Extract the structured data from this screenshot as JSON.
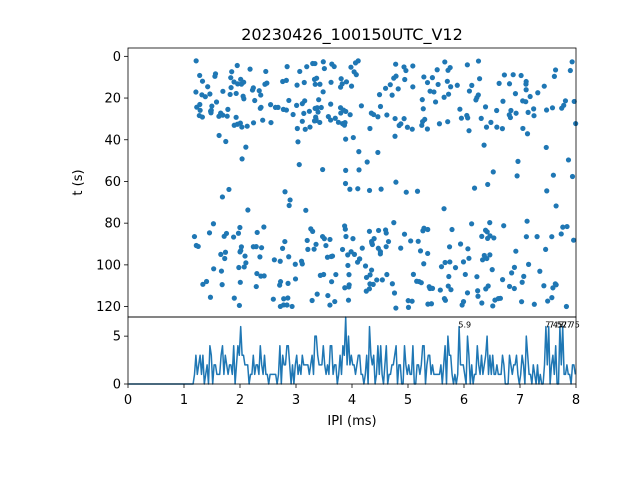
{
  "chart_data": [
    {
      "type": "scatter",
      "title": "20230426_100150UTC_V12",
      "xlabel": "",
      "ylabel": "t (s)",
      "xlim": [
        0,
        8
      ],
      "ylim": [
        125,
        -4
      ],
      "y_inverted": true,
      "yticks": [
        0,
        20,
        40,
        60,
        80,
        100,
        120
      ],
      "tick_labels": [
        "0",
        "20",
        "40",
        "60",
        "80",
        "100",
        "120"
      ],
      "color": "#1f77b4",
      "clusters": [
        {
          "x_range": [
            1.2,
            8.0
          ],
          "t_range": [
            2,
            35
          ],
          "count": 230
        },
        {
          "x_range": [
            1.3,
            8.0
          ],
          "t_range": [
            35,
            75
          ],
          "count": 45
        },
        {
          "x_range": [
            1.15,
            8.0
          ],
          "t_range": [
            79,
            121
          ],
          "count": 220
        }
      ]
    },
    {
      "type": "line",
      "xlabel": "IPI (ms)",
      "ylabel": "",
      "xlim": [
        0,
        8
      ],
      "ylim": [
        0,
        7
      ],
      "xticks": [
        0,
        1,
        2,
        3,
        4,
        5,
        6,
        7,
        8
      ],
      "xtick_labels": [
        "0",
        "1",
        "2",
        "3",
        "4",
        "5",
        "6",
        "7",
        "8"
      ],
      "yticks": [
        0,
        5
      ],
      "ytick_labels": [
        "0",
        "5"
      ],
      "color": "#1f77b4",
      "bin_width": 0.025,
      "peaks": [
        {
          "x": 5.9,
          "y": 6,
          "label": "5.9"
        },
        {
          "x": 7.45,
          "y": 6,
          "label": "7.45"
        },
        {
          "x": 7.52,
          "y": 6,
          "label": "7.52"
        },
        {
          "x": 7.7,
          "y": 6,
          "label": "7.7"
        },
        {
          "x": 7.75,
          "y": 6,
          "label": "7.75"
        }
      ]
    }
  ]
}
